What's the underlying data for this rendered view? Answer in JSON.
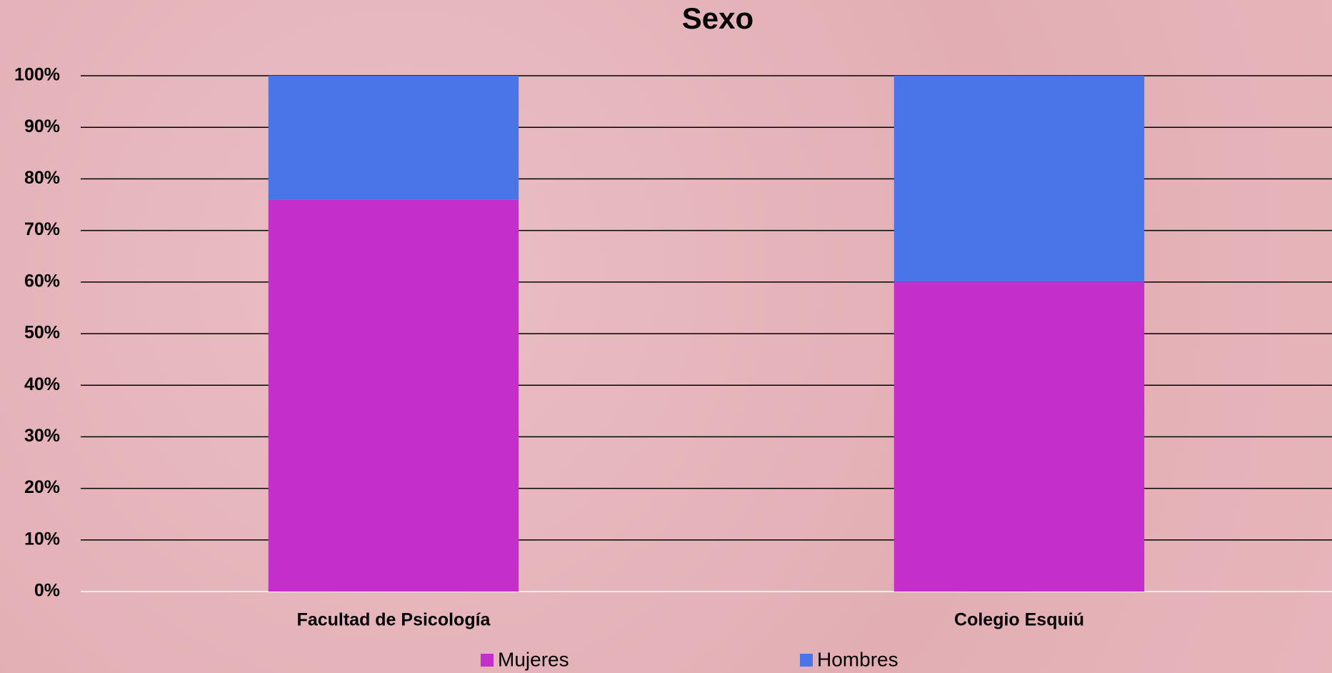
{
  "chart_data": {
    "type": "stacked_bar",
    "title": "Sexo",
    "categories": [
      "Facultad de Psicología",
      "Colegio Esquiú"
    ],
    "series": [
      {
        "name": "Mujeres",
        "color": "#c42fcb",
        "values": [
          76,
          60
        ]
      },
      {
        "name": "Hombres",
        "color": "#4876e8",
        "values": [
          24,
          40
        ]
      }
    ],
    "ylim": [
      0,
      100
    ],
    "yticks": [
      {
        "value": 0,
        "label": "0%"
      },
      {
        "value": 10,
        "label": "10%"
      },
      {
        "value": 20,
        "label": "20%"
      },
      {
        "value": 30,
        "label": "30%"
      },
      {
        "value": 40,
        "label": "40%"
      },
      {
        "value": 50,
        "label": "50%"
      },
      {
        "value": 60,
        "label": "60%"
      },
      {
        "value": 70,
        "label": "70%"
      },
      {
        "value": 80,
        "label": "80%"
      },
      {
        "value": 90,
        "label": "90%"
      },
      {
        "value": 100,
        "label": "100%"
      }
    ],
    "grid": true,
    "legend": "bottom"
  }
}
